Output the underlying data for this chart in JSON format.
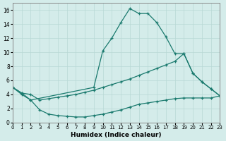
{
  "xlabel": "Humidex (Indice chaleur)",
  "background_color": "#d4ecea",
  "grid_color": "#b8d8d5",
  "line_color": "#1a7a6e",
  "xlim": [
    0,
    23
  ],
  "ylim": [
    0,
    17
  ],
  "xticks": [
    0,
    1,
    2,
    3,
    4,
    5,
    6,
    7,
    8,
    9,
    10,
    11,
    12,
    13,
    14,
    15,
    16,
    17,
    18,
    19,
    20,
    21,
    22,
    23
  ],
  "yticks": [
    0,
    2,
    4,
    6,
    8,
    10,
    12,
    14,
    16
  ],
  "curve_top_x": [
    0,
    1,
    2,
    9,
    10,
    11,
    12,
    13,
    14,
    15,
    16,
    17,
    18,
    19,
    20,
    21,
    22,
    23
  ],
  "curve_top_y": [
    5.0,
    4.2,
    3.2,
    5.0,
    10.2,
    12.0,
    14.2,
    16.2,
    15.5,
    15.5,
    14.2,
    12.2,
    9.8,
    9.8,
    7.0,
    5.8,
    4.8,
    3.8
  ],
  "curve_mid_x": [
    0,
    1,
    2,
    3,
    4,
    5,
    6,
    7,
    8,
    9,
    10,
    11,
    12,
    13,
    14,
    15,
    16,
    17,
    18,
    19,
    20,
    21,
    22,
    23
  ],
  "curve_mid_y": [
    5.0,
    4.2,
    4.0,
    3.2,
    3.4,
    3.6,
    3.8,
    4.0,
    4.3,
    4.6,
    5.0,
    5.4,
    5.8,
    6.2,
    6.7,
    7.2,
    7.7,
    8.2,
    8.7,
    9.8,
    7.0,
    5.8,
    4.8,
    3.8
  ],
  "curve_bot_x": [
    0,
    1,
    2,
    3,
    4,
    5,
    6,
    7,
    8,
    9,
    10,
    11,
    12,
    13,
    14,
    15,
    16,
    17,
    18,
    19,
    20,
    21,
    22,
    23
  ],
  "curve_bot_y": [
    5.0,
    4.0,
    3.2,
    1.8,
    1.2,
    1.0,
    0.9,
    0.8,
    0.8,
    1.0,
    1.2,
    1.5,
    1.8,
    2.2,
    2.6,
    2.8,
    3.0,
    3.2,
    3.4,
    3.5,
    3.5,
    3.5,
    3.5,
    3.8
  ]
}
